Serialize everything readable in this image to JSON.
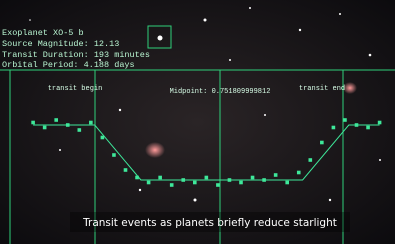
{
  "info": {
    "lines": [
      "Exoplanet XO-5 b",
      "Source Magnitude: 12.13",
      "Transit Duration: 193 minutes",
      "Orbital Period: 4.188 days"
    ]
  },
  "markers": {
    "begin": "transit begin",
    "midpoint": "Midpoint: 0.751809999812",
    "end": "transit end"
  },
  "caption": "Transit events as planets briefly reduce starlight",
  "chart_data": {
    "type": "scatter",
    "color": "#3ee89a",
    "xlim": [
      0,
      100
    ],
    "ylim": [
      0.97,
      1.01
    ],
    "x": [
      6,
      9,
      12,
      15,
      18,
      21,
      24,
      27,
      30,
      33,
      36,
      39,
      42,
      45,
      48,
      51,
      54,
      57,
      60,
      63,
      66,
      69,
      72,
      75,
      78,
      81,
      84,
      87,
      90,
      93,
      96
    ],
    "values": [
      1.001,
      0.999,
      1.002,
      1.0,
      0.998,
      1.001,
      0.995,
      0.988,
      0.982,
      0.979,
      0.977,
      0.979,
      0.976,
      0.978,
      0.977,
      0.979,
      0.976,
      0.978,
      0.977,
      0.979,
      0.978,
      0.98,
      0.977,
      0.981,
      0.986,
      0.993,
      0.999,
      1.002,
      1.0,
      0.999,
      1.001
    ],
    "model": {
      "x": [
        6,
        22,
        34,
        76,
        88,
        96
      ],
      "values": [
        1.0,
        1.0,
        0.978,
        0.978,
        1.0,
        1.0
      ]
    }
  }
}
